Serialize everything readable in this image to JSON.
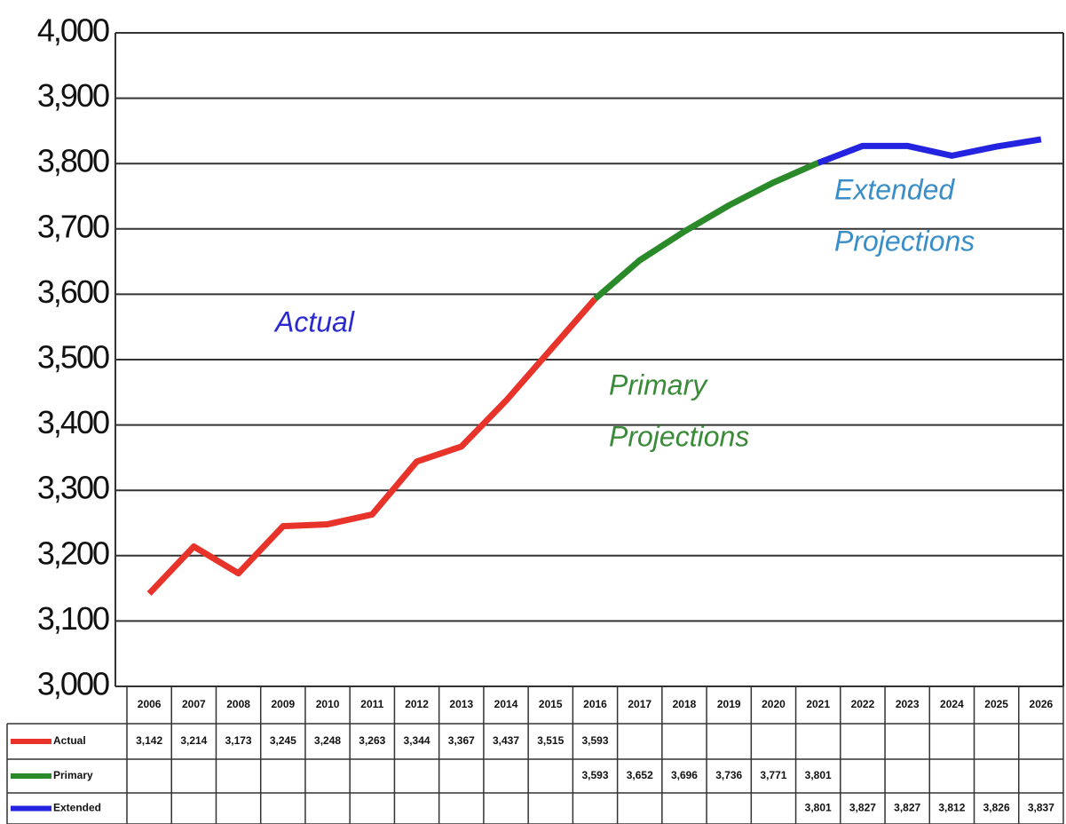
{
  "chart_data": {
    "type": "line",
    "categories": [
      "2006",
      "2007",
      "2008",
      "2009",
      "2010",
      "2011",
      "2012",
      "2013",
      "2014",
      "2015",
      "2016",
      "2017",
      "2018",
      "2019",
      "2020",
      "2021",
      "2022",
      "2023",
      "2024",
      "2025",
      "2026"
    ],
    "series": [
      {
        "name": "Actual",
        "color": "#e8332a",
        "values": [
          3142,
          3214,
          3173,
          3245,
          3248,
          3263,
          3344,
          3367,
          3437,
          3515,
          3593,
          null,
          null,
          null,
          null,
          null,
          null,
          null,
          null,
          null,
          null
        ],
        "value_labels": [
          "3,142",
          "3,214",
          "3,173",
          "3,245",
          "3,248",
          "3,263",
          "3,344",
          "3,367",
          "3,437",
          "3,515",
          "3,593",
          null,
          null,
          null,
          null,
          null,
          null,
          null,
          null,
          null,
          null
        ]
      },
      {
        "name": "Primary",
        "color": "#2a8a2a",
        "values": [
          null,
          null,
          null,
          null,
          null,
          null,
          null,
          null,
          null,
          null,
          3593,
          3652,
          3696,
          3736,
          3771,
          3801,
          null,
          null,
          null,
          null,
          null
        ],
        "value_labels": [
          null,
          null,
          null,
          null,
          null,
          null,
          null,
          null,
          null,
          null,
          "3,593",
          "3,652",
          "3,696",
          "3,736",
          "3,771",
          "3,801",
          null,
          null,
          null,
          null,
          null
        ]
      },
      {
        "name": "Extended",
        "color": "#2424e0",
        "values": [
          null,
          null,
          null,
          null,
          null,
          null,
          null,
          null,
          null,
          null,
          null,
          null,
          null,
          null,
          null,
          3801,
          3827,
          3827,
          3812,
          3826,
          3837
        ],
        "value_labels": [
          null,
          null,
          null,
          null,
          null,
          null,
          null,
          null,
          null,
          null,
          null,
          null,
          null,
          null,
          null,
          "3,801",
          "3,827",
          "3,827",
          "3,812",
          "3,826",
          "3,837"
        ]
      }
    ],
    "annotations": [
      {
        "lines": [
          "Actual"
        ],
        "color": "#2a2ad0"
      },
      {
        "lines": [
          "Primary",
          "Projections"
        ],
        "color": "#3a8a3a"
      },
      {
        "lines": [
          "Extended",
          "Projections"
        ],
        "color": "#3a8ec8"
      }
    ],
    "ylim": [
      3000,
      4000
    ],
    "yticks": [
      {
        "value": 3000,
        "label": "3,000"
      },
      {
        "value": 3100,
        "label": "3,100"
      },
      {
        "value": 3200,
        "label": "3,200"
      },
      {
        "value": 3300,
        "label": "3,300"
      },
      {
        "value": 3400,
        "label": "3,400"
      },
      {
        "value": 3500,
        "label": "3,500"
      },
      {
        "value": 3600,
        "label": "3,600"
      },
      {
        "value": 3700,
        "label": "3,700"
      },
      {
        "value": 3800,
        "label": "3,800"
      },
      {
        "value": 3900,
        "label": "3,900"
      },
      {
        "value": 4000,
        "label": "4,000"
      }
    ],
    "grid": true
  }
}
